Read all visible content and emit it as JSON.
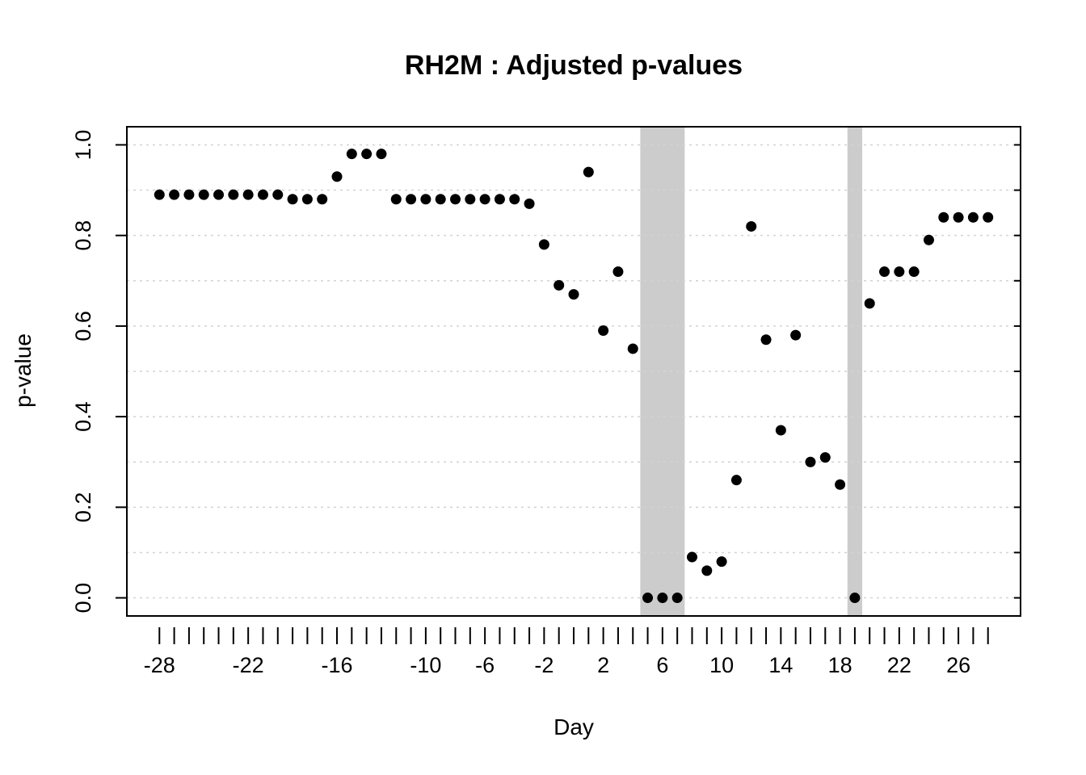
{
  "chart_data": {
    "type": "scatter",
    "title": "RH2M : Adjusted p-values",
    "xlabel": "Day",
    "ylabel": "p-value",
    "xlim": [
      -30.2,
      30.2
    ],
    "ylim": [
      -0.04,
      1.04
    ],
    "x_ticks": [
      -28,
      -27,
      -26,
      -25,
      -24,
      -23,
      -22,
      -21,
      -20,
      -19,
      -18,
      -17,
      -16,
      -15,
      -14,
      -13,
      -12,
      -11,
      -10,
      -9,
      -8,
      -7,
      -6,
      -5,
      -4,
      -3,
      -2,
      -1,
      0,
      1,
      2,
      3,
      4,
      5,
      6,
      7,
      8,
      9,
      10,
      11,
      12,
      13,
      14,
      15,
      16,
      17,
      18,
      19,
      20,
      21,
      22,
      23,
      24,
      25,
      26,
      27,
      28
    ],
    "x_tick_labels": [
      "-28",
      "-22",
      "-16",
      "-10",
      "-6",
      "-2",
      "2",
      "6",
      "10",
      "14",
      "18",
      "22",
      "26"
    ],
    "y_ticks": [
      0.0,
      0.2,
      0.4,
      0.6,
      0.8,
      1.0
    ],
    "y_tick_labels": [
      "0.0",
      "0.2",
      "0.4",
      "0.6",
      "0.8",
      "1.0"
    ],
    "grid": true,
    "shaded_regions": [
      {
        "from": 4.5,
        "to": 7.5
      },
      {
        "from": 18.5,
        "to": 19.5
      }
    ],
    "colors": {
      "points": "#000000",
      "shade": "#cccccc",
      "grid": "#d3d3d3",
      "axis": "#000000"
    },
    "x": [
      -28,
      -27,
      -26,
      -25,
      -24,
      -23,
      -22,
      -21,
      -20,
      -19,
      -18,
      -17,
      -16,
      -15,
      -14,
      -13,
      -12,
      -11,
      -10,
      -9,
      -8,
      -7,
      -6,
      -5,
      -4,
      -3,
      -2,
      -1,
      0,
      1,
      2,
      3,
      4,
      5,
      6,
      7,
      8,
      9,
      10,
      11,
      12,
      13,
      14,
      15,
      16,
      17,
      18,
      19,
      20,
      21,
      22,
      23,
      24,
      25,
      26,
      27,
      28
    ],
    "y": [
      0.89,
      0.89,
      0.89,
      0.89,
      0.89,
      0.89,
      0.89,
      0.89,
      0.89,
      0.88,
      0.88,
      0.88,
      0.93,
      0.98,
      0.98,
      0.98,
      0.88,
      0.88,
      0.88,
      0.88,
      0.88,
      0.88,
      0.88,
      0.88,
      0.88,
      0.87,
      0.78,
      0.69,
      0.67,
      0.94,
      0.59,
      0.72,
      0.55,
      0.0,
      0.0,
      0.0,
      0.09,
      0.06,
      0.08,
      0.26,
      0.82,
      0.57,
      0.37,
      0.58,
      0.3,
      0.31,
      0.25,
      0.0,
      0.65,
      0.72,
      0.72,
      0.72,
      0.79,
      0.84,
      0.84,
      0.84,
      0.84
    ]
  }
}
